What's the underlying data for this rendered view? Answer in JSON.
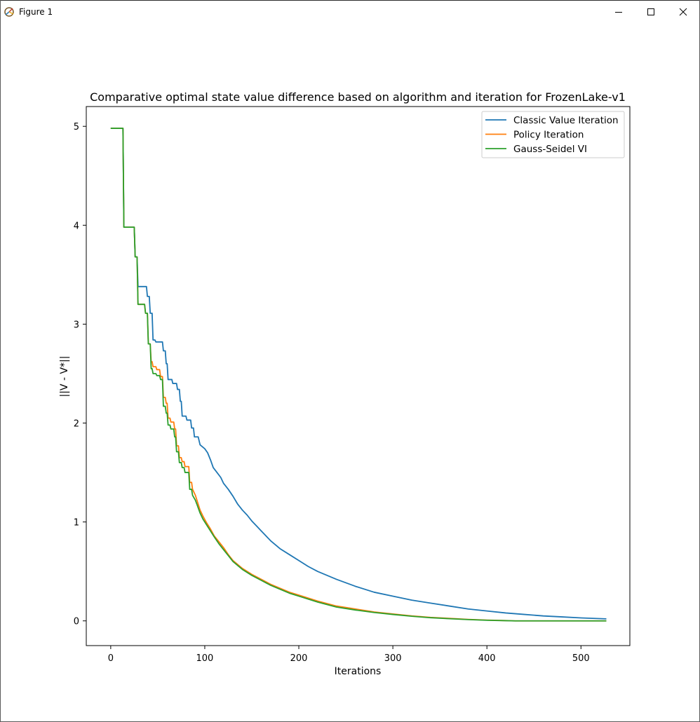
{
  "window": {
    "title": "Figure 1",
    "icons": {
      "app": "matplotlib-figure-icon",
      "minimize": "minimize-icon",
      "maximize": "maximize-icon",
      "close": "close-icon"
    }
  },
  "chart_data": {
    "type": "line",
    "title": "Comparative optimal state value difference based on algorithm and iteration for FrozenLake-v1",
    "xlabel": "Iterations",
    "ylabel": "||V - V*||",
    "xlim": [
      -26,
      552
    ],
    "ylim": [
      -0.25,
      5.2
    ],
    "xticks": [
      0,
      100,
      200,
      300,
      400,
      500
    ],
    "yticks": [
      0,
      1,
      2,
      3,
      4,
      5
    ],
    "grid": false,
    "legend_position": "upper-right",
    "series": [
      {
        "name": "Classic Value Iteration",
        "color": "#1f77b4",
        "x": [
          0,
          13,
          14,
          25,
          26,
          28,
          29,
          38,
          39,
          41,
          42,
          44,
          45,
          47,
          48,
          55,
          56,
          58,
          59,
          60,
          61,
          65,
          66,
          70,
          71,
          73,
          74,
          75,
          76,
          80,
          81,
          85,
          86,
          88,
          89,
          93,
          95,
          100,
          103,
          106,
          109,
          113,
          117,
          120,
          125,
          130,
          135,
          140,
          145,
          150,
          155,
          160,
          170,
          180,
          190,
          200,
          210,
          220,
          240,
          260,
          280,
          300,
          320,
          340,
          360,
          380,
          400,
          420,
          440,
          460,
          480,
          500,
          527
        ],
        "y": [
          4.98,
          4.98,
          3.98,
          3.98,
          3.68,
          3.68,
          3.38,
          3.38,
          3.28,
          3.28,
          3.11,
          3.11,
          2.84,
          2.84,
          2.82,
          2.82,
          2.73,
          2.73,
          2.6,
          2.6,
          2.44,
          2.44,
          2.4,
          2.4,
          2.34,
          2.34,
          2.22,
          2.22,
          2.07,
          2.07,
          2.03,
          2.03,
          1.95,
          1.95,
          1.86,
          1.86,
          1.78,
          1.74,
          1.7,
          1.63,
          1.55,
          1.5,
          1.45,
          1.39,
          1.33,
          1.26,
          1.18,
          1.12,
          1.07,
          1.01,
          0.96,
          0.91,
          0.81,
          0.73,
          0.67,
          0.61,
          0.55,
          0.5,
          0.42,
          0.35,
          0.29,
          0.25,
          0.21,
          0.18,
          0.15,
          0.12,
          0.1,
          0.08,
          0.065,
          0.05,
          0.04,
          0.03,
          0.02
        ]
      },
      {
        "name": "Policy Iteration",
        "color": "#ff7f0e",
        "x": [
          0,
          13,
          14,
          25,
          26,
          28,
          29,
          36,
          37,
          39,
          40,
          42,
          43,
          44,
          45,
          48,
          49,
          52,
          53,
          55,
          56,
          58,
          59,
          60,
          61,
          63,
          64,
          67,
          68,
          69,
          70,
          72,
          73,
          75,
          76,
          78,
          79,
          83,
          84,
          86,
          87,
          90,
          92,
          95,
          98,
          102,
          106,
          110,
          115,
          120,
          125,
          130,
          140,
          150,
          160,
          170,
          180,
          190,
          200,
          220,
          240,
          260,
          280,
          300,
          320,
          340,
          360,
          380,
          400,
          420,
          430,
          527
        ],
        "y": [
          4.98,
          4.98,
          3.98,
          3.98,
          3.68,
          3.68,
          3.2,
          3.2,
          3.11,
          3.11,
          2.8,
          2.8,
          2.62,
          2.62,
          2.57,
          2.57,
          2.54,
          2.54,
          2.47,
          2.47,
          2.26,
          2.26,
          2.2,
          2.2,
          2.05,
          2.05,
          2.01,
          2.01,
          1.94,
          1.94,
          1.77,
          1.77,
          1.65,
          1.65,
          1.61,
          1.61,
          1.56,
          1.56,
          1.4,
          1.4,
          1.33,
          1.27,
          1.21,
          1.12,
          1.06,
          0.99,
          0.93,
          0.86,
          0.8,
          0.74,
          0.67,
          0.61,
          0.53,
          0.47,
          0.42,
          0.37,
          0.33,
          0.29,
          0.26,
          0.2,
          0.15,
          0.12,
          0.09,
          0.07,
          0.05,
          0.035,
          0.025,
          0.015,
          0.008,
          0.003,
          0.0,
          0.0
        ]
      },
      {
        "name": "Gauss-Seidel VI",
        "color": "#2ca02c",
        "x": [
          0,
          13,
          14,
          25,
          26,
          28,
          29,
          36,
          37,
          39,
          40,
          42,
          43,
          44,
          45,
          48,
          49,
          52,
          53,
          55,
          56,
          58,
          59,
          60,
          61,
          63,
          64,
          67,
          68,
          69,
          70,
          72,
          73,
          75,
          76,
          78,
          79,
          83,
          84,
          86,
          87,
          90,
          92,
          95,
          98,
          102,
          106,
          110,
          115,
          120,
          125,
          130,
          140,
          150,
          160,
          170,
          180,
          190,
          200,
          220,
          240,
          260,
          280,
          300,
          320,
          340,
          360,
          380,
          400,
          420,
          430,
          527
        ],
        "y": [
          4.98,
          4.98,
          3.98,
          3.98,
          3.68,
          3.68,
          3.2,
          3.2,
          3.11,
          3.11,
          2.8,
          2.8,
          2.55,
          2.55,
          2.5,
          2.5,
          2.48,
          2.48,
          2.44,
          2.44,
          2.17,
          2.17,
          2.1,
          2.1,
          1.98,
          1.98,
          1.94,
          1.94,
          1.86,
          1.86,
          1.71,
          1.71,
          1.6,
          1.6,
          1.55,
          1.55,
          1.5,
          1.5,
          1.33,
          1.33,
          1.27,
          1.22,
          1.17,
          1.09,
          1.03,
          0.97,
          0.91,
          0.85,
          0.78,
          0.72,
          0.66,
          0.6,
          0.52,
          0.46,
          0.41,
          0.36,
          0.32,
          0.28,
          0.25,
          0.19,
          0.14,
          0.11,
          0.085,
          0.065,
          0.047,
          0.032,
          0.022,
          0.013,
          0.006,
          0.002,
          0.0,
          0.0
        ]
      }
    ]
  }
}
